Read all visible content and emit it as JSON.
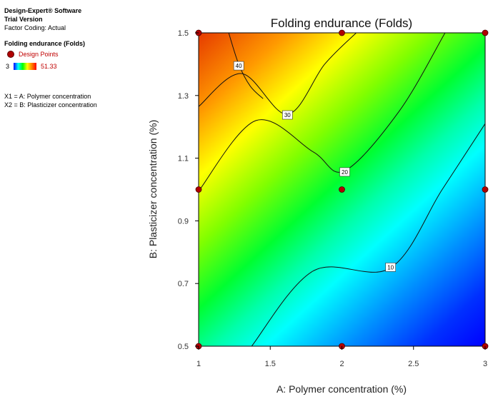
{
  "software": {
    "name": "Design-Expert® Software",
    "edition": "Trial Version",
    "factor_coding": "Factor Coding: Actual"
  },
  "response_panel": {
    "response_title": "Folding endurance (Folds)",
    "design_points_label": "Design Points",
    "scale_min": "3",
    "scale_max": "51.33"
  },
  "factor_coding_lines": [
    "X1 = A: Polymer concentration",
    "X2 = B: Plasticizer concentration"
  ],
  "colors": {
    "low": "#0000ff",
    "high": "#ff0000",
    "design_point": "#b00000"
  },
  "chart_data": {
    "type": "contour",
    "title": "Folding endurance  (Folds)",
    "xlabel": "A: Polymer concentration (%)",
    "ylabel": "B: Plasticizer concentration (%)",
    "xlim": [
      1,
      3
    ],
    "ylim": [
      0.5,
      1.5
    ],
    "x_ticks": [
      "1",
      "1.5",
      "2",
      "2.5",
      "3"
    ],
    "y_ticks": [
      "0.5",
      "0.7",
      "0.9",
      "1.1",
      "1.3",
      "1.5"
    ],
    "z_range": [
      3,
      51.33
    ],
    "contours": [
      {
        "level": "40",
        "points": [
          [
            1.21,
            1.5
          ],
          [
            1.28,
            1.4
          ],
          [
            1.36,
            1.33
          ],
          [
            1.45,
            1.29
          ]
        ]
      },
      {
        "level": "30",
        "points": [
          [
            1.0,
            1.265
          ],
          [
            1.3,
            1.37
          ],
          [
            1.62,
            1.24
          ],
          [
            1.88,
            1.4
          ],
          [
            2.1,
            1.5
          ]
        ]
      },
      {
        "level": "20",
        "points": [
          [
            1.0,
            0.995
          ],
          [
            1.4,
            1.22
          ],
          [
            1.8,
            1.12
          ],
          [
            2.02,
            1.06
          ],
          [
            2.4,
            1.25
          ],
          [
            2.72,
            1.5
          ]
        ]
      },
      {
        "level": "10",
        "points": [
          [
            1.37,
            0.5
          ],
          [
            1.8,
            0.74
          ],
          [
            2.34,
            0.75
          ],
          [
            2.7,
            1.0
          ],
          [
            3.0,
            1.21
          ]
        ]
      }
    ],
    "contour_label_positions": [
      {
        "level": "40",
        "x": 1.28,
        "y": 1.395
      },
      {
        "level": "30",
        "x": 1.62,
        "y": 1.238
      },
      {
        "level": "20",
        "x": 2.02,
        "y": 1.056
      },
      {
        "level": "10",
        "x": 2.34,
        "y": 0.752
      }
    ],
    "design_points": [
      [
        1,
        1.5
      ],
      [
        2,
        1.5
      ],
      [
        3,
        1.5
      ],
      [
        1,
        1.0
      ],
      [
        2,
        1.0
      ],
      [
        3,
        1.0
      ],
      [
        1,
        0.5
      ],
      [
        2,
        0.5
      ],
      [
        3,
        0.5
      ]
    ]
  }
}
